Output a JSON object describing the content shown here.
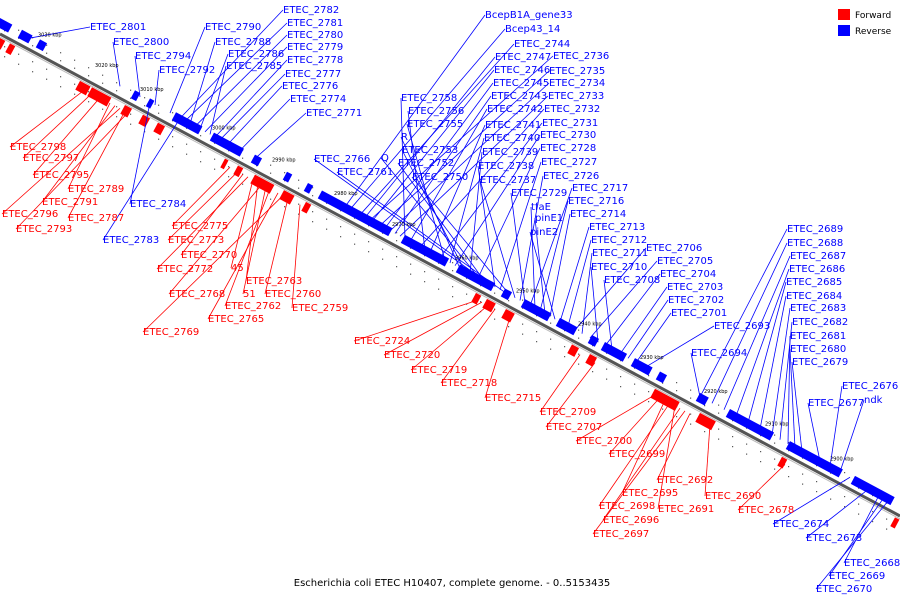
{
  "legend": {
    "items": [
      {
        "label": "Forward",
        "color": "#ff0000"
      },
      {
        "label": "Reverse",
        "color": "#0000ff"
      }
    ]
  },
  "colors": {
    "forward": "#ff0000",
    "reverse": "#0000ff",
    "backbone": "#777777"
  },
  "caption": "Escherichia coli ETEC H10407, complete genome. - 0..5153435",
  "ticks": [
    "3030 kbp",
    "3020 kbp",
    "3010 kbp",
    "3000 kbp",
    "2990 kbp",
    "2980 kbp",
    "2970 kbp",
    "2960 kbp",
    "2950 kbp",
    "2940 kbp",
    "2930 kbp",
    "2920 kbp",
    "2910 kbp",
    "2900 kbp"
  ],
  "reverse_labels": [
    "ETEC_2801",
    "ETEC_2800",
    "ETEC_2794",
    "ETEC_2792",
    "ETEC_2790",
    "ETEC_2782",
    "ETEC_2781",
    "ETEC_2788",
    "ETEC_2780",
    "ETEC_2786",
    "ETEC_2779",
    "ETEC_2785",
    "ETEC_2778",
    "ETEC_2777",
    "ETEC_2776",
    "ETEC_2774",
    "ETEC_2771",
    "BcepB1A_gene33",
    "Bcep43_14",
    "ETEC_2744",
    "ETEC_2747",
    "ETEC_2736",
    "ETEC_2746",
    "ETEC_2735",
    "ETEC_2745",
    "ETEC_2734",
    "ETEC_2743",
    "ETEC_2733",
    "ETEC_2758",
    "ETEC_2742",
    "ETEC_2732",
    "ETEC_2756",
    "ETEC_2741",
    "ETEC_2731",
    "ETEC_2755",
    "ETEC_2740",
    "ETEC_2730",
    "R",
    "ETEC_2753",
    "ETEC_2739",
    "ETEC_2728",
    "Q",
    "ETEC_2752",
    "ETEC_2766",
    "ETEC_2738",
    "ETEC_2727",
    "ETEC_2761",
    "ETEC_2750",
    "ETEC_2737",
    "ETEC_2726",
    "ETEC_2729",
    "ETEC_2717",
    "tfaE",
    "ETEC_2716",
    "pinE1",
    "ETEC_2714",
    "pinE2",
    "ETEC_2713",
    "ETEC_2712",
    "ETEC_2706",
    "ETEC_2711",
    "ETEC_2705",
    "ETEC_2710",
    "ETEC_2704",
    "ETEC_2708",
    "ETEC_2703",
    "ETEC_2702",
    "ETEC_2701",
    "ETEC_2693",
    "ETEC_2694",
    "ETEC_2689",
    "ETEC_2688",
    "ETEC_2687",
    "ETEC_2686",
    "ETEC_2685",
    "ETEC_2684",
    "ETEC_2683",
    "ETEC_2682",
    "ETEC_2681",
    "ETEC_2680",
    "ETEC_2679",
    "ETEC_2676",
    "ndk",
    "ETEC_2677",
    "ETEC_2784",
    "ETEC_2783",
    "ETEC_2674",
    "ETEC_2673",
    "ETEC_2668",
    "ETEC_2669",
    "ETEC_2670"
  ],
  "forward_labels": [
    "ETEC_2798",
    "ETEC_2797",
    "ETEC_2795",
    "ETEC_2789",
    "ETEC_2791",
    "ETEC_2796",
    "ETEC_2787",
    "ETEC_2793",
    "ETEC_2775",
    "ETEC_2773",
    "ETEC_2770",
    "ETEC_2772",
    "45",
    "ETEC_2763",
    "ETEC_2768",
    "51",
    "ETEC_2760",
    "ETEC_2762",
    "ETEC_2759",
    "ETEC_2765",
    "ETEC_2769",
    "ETEC_2724",
    "ETEC_2720",
    "ETEC_2719",
    "ETEC_2718",
    "ETEC_2715",
    "ETEC_2709",
    "ETEC_2707",
    "ETEC_2700",
    "ETEC_2699",
    "ETEC_2692",
    "ETEC_2695",
    "ETEC_2690",
    "ETEC_2698",
    "ETEC_2691",
    "ETEC_2696",
    "ETEC_2678",
    "ETEC_2697"
  ]
}
